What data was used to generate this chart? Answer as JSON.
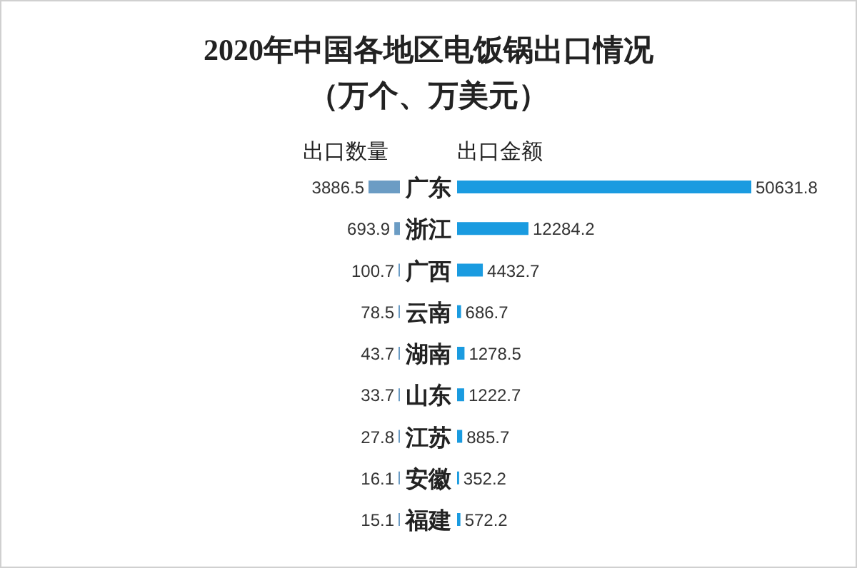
{
  "chart_data": [
    {
      "type": "bar",
      "orientation": "horizontal",
      "title": "2020年中国各地区电饭锅出口情况",
      "subtitle": "（万个、万美元）",
      "categories": [
        "广东",
        "浙江",
        "广西",
        "云南",
        "湖南",
        "山东",
        "江苏",
        "安徽",
        "福建"
      ],
      "series": [
        {
          "name": "出口数量",
          "color": "#6b9cc4",
          "values": [
            3886.5,
            693.9,
            100.7,
            78.5,
            43.7,
            33.7,
            27.8,
            16.1,
            15.1
          ]
        }
      ],
      "data_labels": true
    },
    {
      "type": "bar",
      "orientation": "horizontal",
      "categories": [
        null,
        null,
        null,
        null,
        null,
        null,
        null,
        null,
        null
      ],
      "series": [
        {
          "name": "出口金额",
          "color": "#1a9be0",
          "values": [
            50631.8,
            12284.2,
            4432.7,
            686.7,
            1278.5,
            1222.7,
            885.7,
            352.2,
            572.2
          ]
        }
      ],
      "data_labels": true
    }
  ]
}
